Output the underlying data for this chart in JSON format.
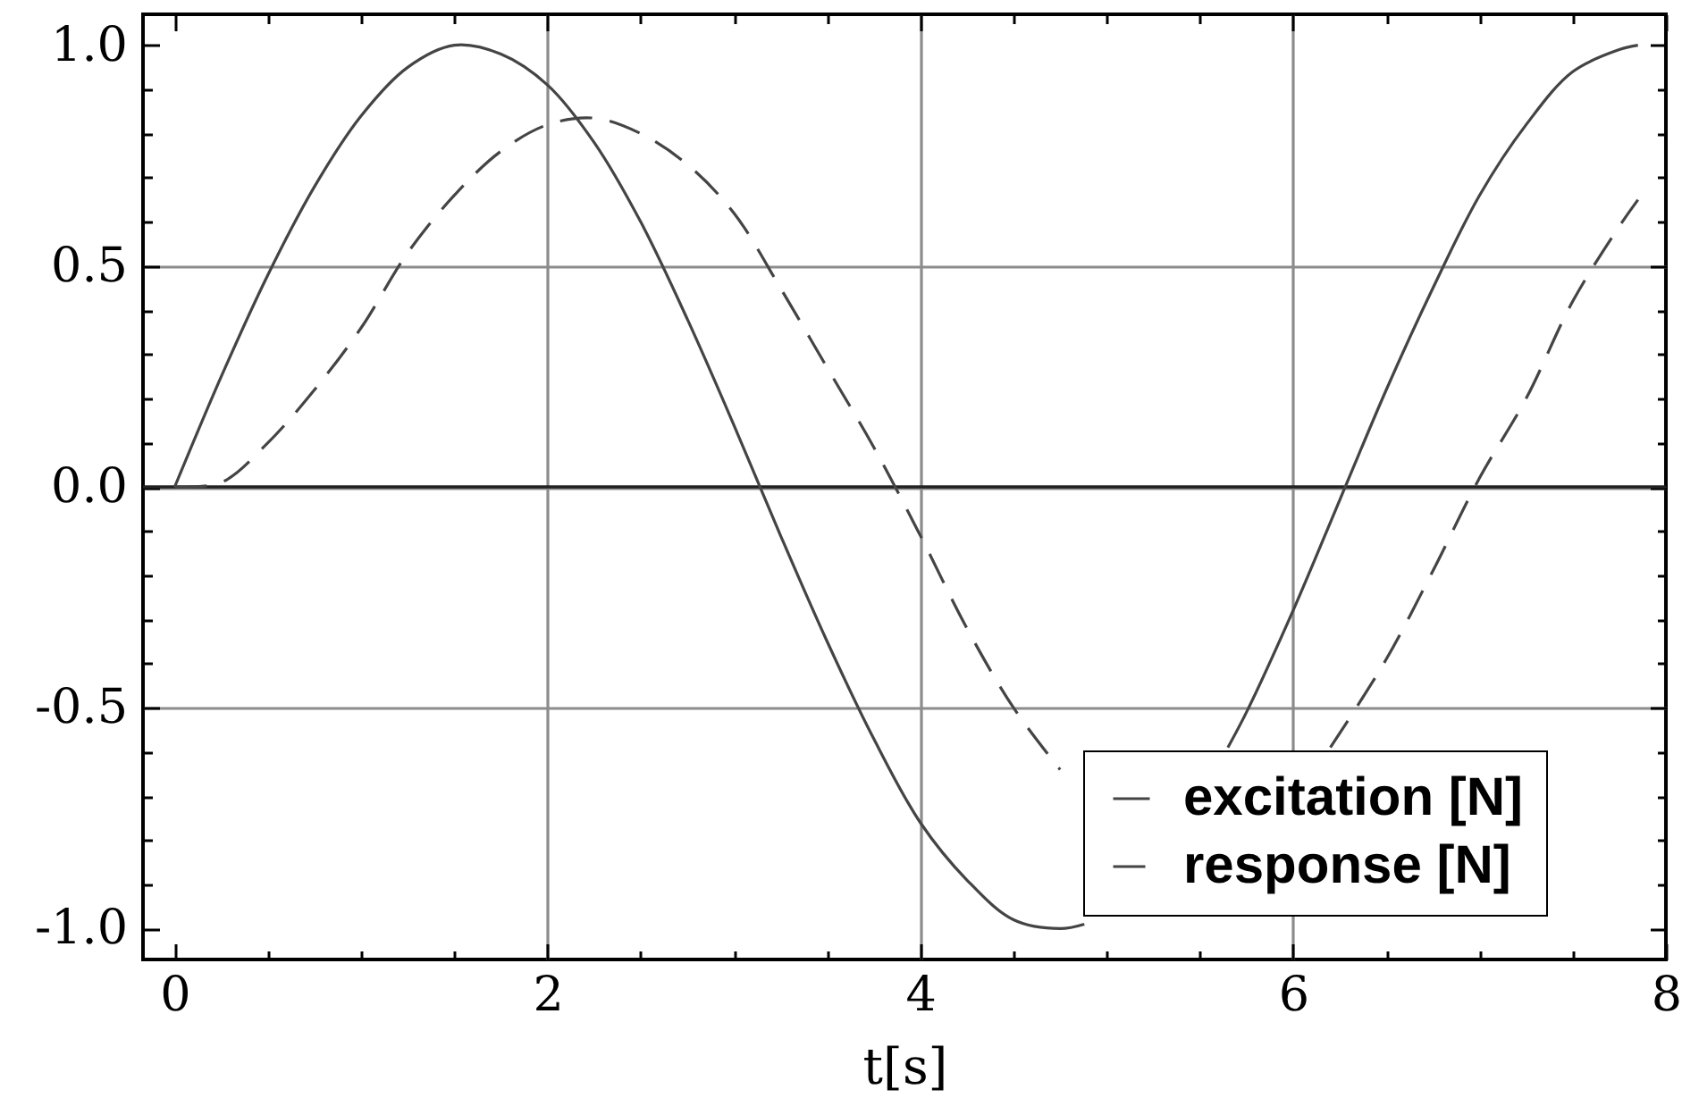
{
  "chart_data": {
    "type": "line",
    "xlabel": "t[s]",
    "series": [
      {
        "name": "excitation [N]",
        "color": "#444444",
        "line_style": "solid",
        "x": [
          0,
          0.25,
          0.5,
          0.75,
          1,
          1.25,
          1.5,
          1.75,
          2,
          2.25,
          2.5,
          2.75,
          3,
          3.25,
          3.5,
          3.75,
          4,
          4.25,
          4.5,
          4.75,
          4.88,
          5,
          5.25,
          5.5,
          5.65,
          5.75,
          6,
          6.25,
          6.5,
          6.75,
          7,
          7.25,
          7.5,
          7.75,
          7.85
        ],
        "values": [
          0,
          0.25,
          0.48,
          0.68,
          0.84,
          0.95,
          1.0,
          0.98,
          0.91,
          0.78,
          0.6,
          0.38,
          0.14,
          -0.11,
          -0.35,
          -0.57,
          -0.76,
          -0.89,
          -0.98,
          -1.0,
          -0.99,
          null,
          null,
          null,
          -0.59,
          -0.51,
          -0.28,
          -0.03,
          0.22,
          0.45,
          0.66,
          0.82,
          0.94,
          0.99,
          1.0
        ]
      },
      {
        "name": "response [N]",
        "color": "#444444",
        "line_style": "dashed",
        "x": [
          0,
          0.25,
          0.5,
          0.75,
          1,
          1.25,
          1.5,
          1.75,
          2,
          2.25,
          2.5,
          2.75,
          3,
          3.25,
          3.5,
          3.75,
          4,
          4.25,
          4.5,
          4.75,
          5,
          5.5,
          6,
          6.2,
          6.5,
          6.75,
          7,
          7.25,
          7.5,
          7.75,
          7.85
        ],
        "values": [
          0,
          0.01,
          0.1,
          0.22,
          0.36,
          0.53,
          0.66,
          0.76,
          0.82,
          0.835,
          0.8,
          0.73,
          0.62,
          0.45,
          0.27,
          0.09,
          -0.11,
          -0.32,
          -0.5,
          -0.64,
          null,
          null,
          null,
          -0.59,
          -0.39,
          -0.19,
          0.02,
          0.2,
          0.42,
          0.59,
          0.65
        ]
      }
    ],
    "xlim": [
      -0.17,
      8
    ],
    "ylim": [
      -1.07,
      1.07
    ],
    "xticks": [
      0,
      {
        "value": 0.5,
        "label": null
      },
      {
        "value": 1,
        "label": null
      },
      {
        "value": 1.5,
        "label": null
      },
      2,
      {
        "value": 2.5,
        "label": null
      },
      {
        "value": 3,
        "label": null
      },
      {
        "value": 3.5,
        "label": null
      },
      4,
      {
        "value": 4.5,
        "label": null
      },
      {
        "value": 5,
        "label": null
      },
      {
        "value": 5.5,
        "label": null
      },
      6,
      {
        "value": 6.5,
        "label": null
      },
      {
        "value": 7,
        "label": null
      },
      {
        "value": 7.5,
        "label": null
      },
      8
    ],
    "yticks": [
      {
        "value": -1,
        "label": "-1.0"
      },
      {
        "value": -0.9,
        "label": null
      },
      {
        "value": -0.8,
        "label": null
      },
      {
        "value": -0.7,
        "label": null
      },
      {
        "value": -0.6,
        "label": null
      },
      {
        "value": -0.5,
        "label": "-0.5"
      },
      {
        "value": -0.4,
        "label": null
      },
      {
        "value": -0.3,
        "label": null
      },
      {
        "value": -0.2,
        "label": null
      },
      {
        "value": -0.1,
        "label": null
      },
      {
        "value": 0,
        "label": "0.0"
      },
      {
        "value": 0.1,
        "label": null
      },
      {
        "value": 0.2,
        "label": null
      },
      {
        "value": 0.3,
        "label": null
      },
      {
        "value": 0.4,
        "label": null
      },
      {
        "value": 0.5,
        "label": "0.5"
      },
      {
        "value": 0.6,
        "label": null
      },
      {
        "value": 0.7,
        "label": null
      },
      {
        "value": 0.8,
        "label": null
      },
      {
        "value": 0.9,
        "label": null
      },
      {
        "value": 1,
        "label": "1.0"
      }
    ],
    "grid": true,
    "legend": "bottom right",
    "ref_lines": [
      {
        "axis": "y",
        "value": 0,
        "color": "#222222"
      }
    ]
  }
}
